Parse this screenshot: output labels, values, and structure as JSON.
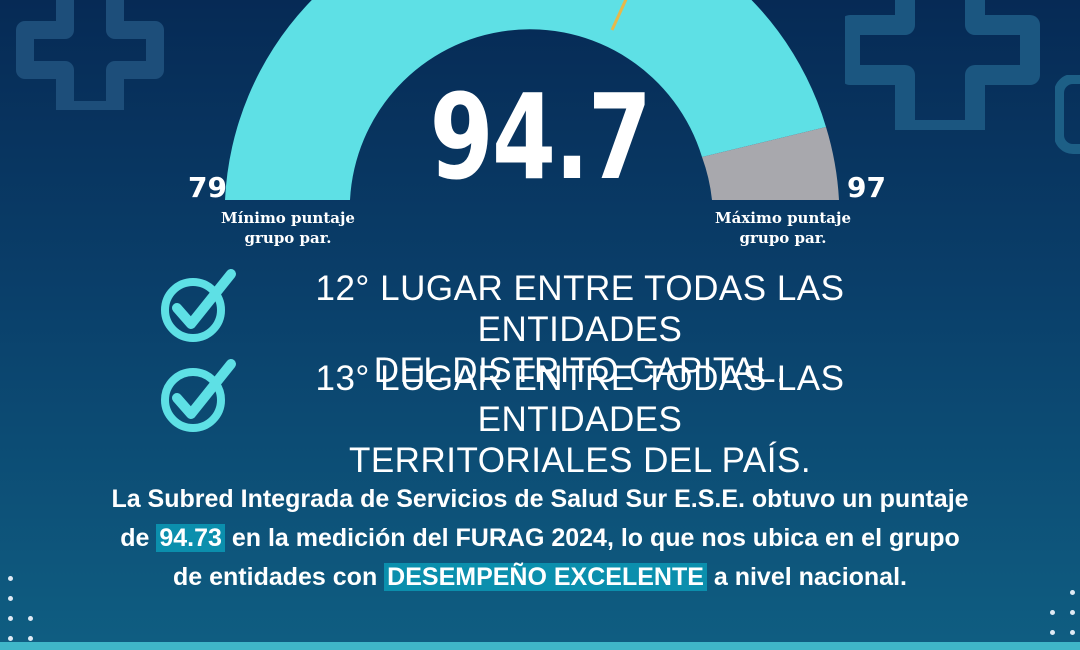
{
  "gauge": {
    "value_display": "94.7",
    "min_value": "79",
    "max_value": "97",
    "min_caption_line1": "Mínimo puntaje",
    "min_caption_line2": "grupo par.",
    "max_caption_line1": "Máximo puntaje",
    "max_caption_line2": "grupo par.",
    "fill_color": "#5ee0e5",
    "remainder_color": "#a8a8ad",
    "needle_color": "#e7b84a"
  },
  "rankings": [
    {
      "line1": "12° LUGAR ENTRE TODAS LAS ENTIDADES",
      "line2": "DEL DISTRITO CAPITAL.",
      "icon": "check-circle-icon"
    },
    {
      "line1": "13° LUGAR ENTRE TODAS LAS ENTIDADES",
      "line2": "TERRITORIALES DEL PAÍS.",
      "icon": "check-circle-icon"
    }
  ],
  "summary": {
    "part1": "La Subred Integrada de Servicios de Salud Sur E.S.E. obtuvo un puntaje",
    "part2_prefix": "de ",
    "score": "94.73",
    "part2_suffix": " en la medición del FURAG 2024, lo que nos ubica en el grupo",
    "part3_prefix": "de entidades con ",
    "highlight": "DESEMPEÑO EXCELENTE",
    "part3_suffix": " a nivel nacional."
  },
  "colors": {
    "background_top": "#062a55",
    "background_bottom": "#0f5e82",
    "accent_cyan": "#5ee0e5",
    "highlight_bg": "#0b8fad"
  }
}
